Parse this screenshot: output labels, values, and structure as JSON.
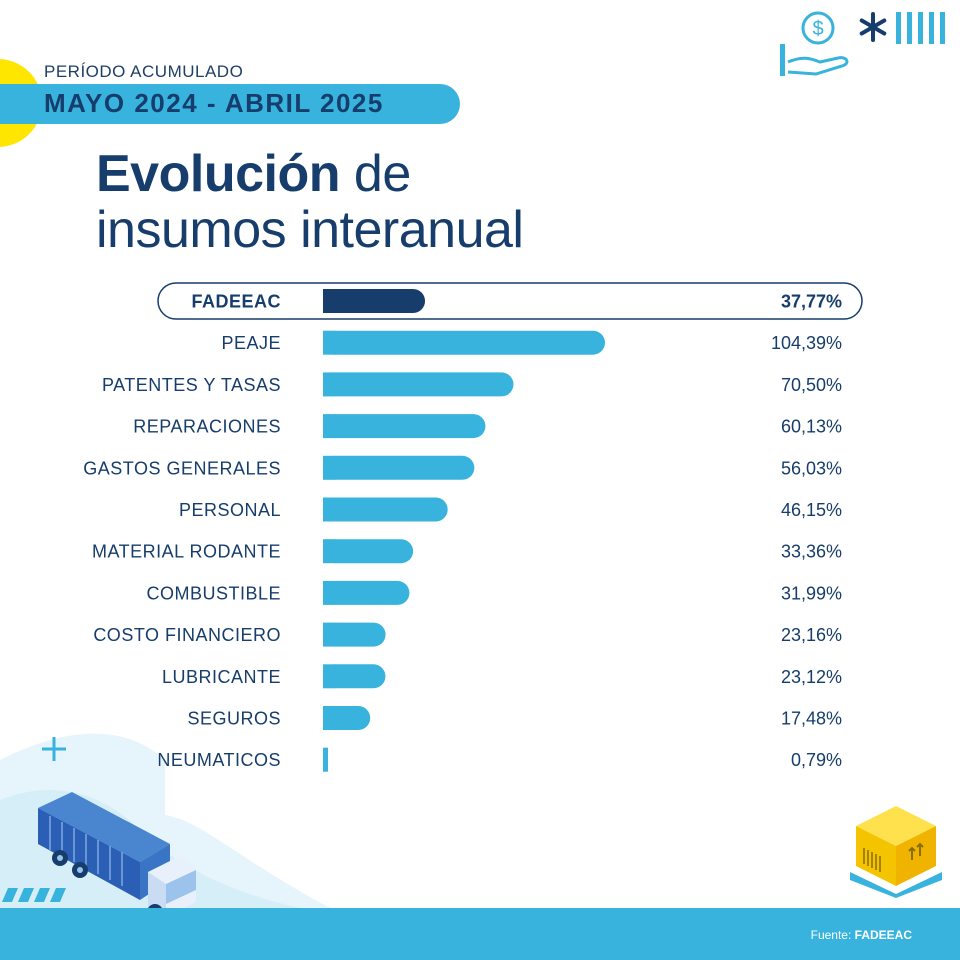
{
  "header": {
    "period_label": "PERÍODO ACUMULADO",
    "period": "MAYO 2024 - ABRIL 2025"
  },
  "title": {
    "bold": "Evolución",
    "rest": " de",
    "line2": "insumos interanual"
  },
  "colors": {
    "highlight_bar": "#163d6b",
    "bar": "#38b3de",
    "text": "#163d6b",
    "accent_yellow": "#ffe600"
  },
  "icons": [
    "money-hand-icon",
    "asterisk-icon",
    "stripes-icon",
    "plus-icon",
    "truck-icon",
    "box-on-pallet-icon"
  ],
  "chart_data": {
    "type": "bar",
    "orientation": "horizontal",
    "categories": [
      "FADEEAC",
      "PEAJE",
      "PATENTES Y TASAS",
      "REPARACIONES",
      "GASTOS GENERALES",
      "PERSONAL",
      "MATERIAL RODANTE",
      "COMBUSTIBLE",
      "COSTO FINANCIERO",
      "LUBRICANTE",
      "SEGUROS",
      "NEUMATICOS"
    ],
    "values": [
      37.77,
      104.39,
      70.5,
      60.13,
      56.03,
      46.15,
      33.36,
      31.99,
      23.16,
      23.12,
      17.48,
      0.79
    ],
    "value_labels": [
      "37,77%",
      "104,39%",
      "70,50%",
      "60,13%",
      "56,03%",
      "46,15%",
      "33,36%",
      "31,99%",
      "23,16%",
      "23,12%",
      "17,48%",
      "0,79%"
    ],
    "highlight": "FADEEAC",
    "unit": "%",
    "xlim": [
      0,
      104.39
    ],
    "title": "Evolución de insumos interanual",
    "xlabel": "",
    "ylabel": "",
    "grid": false,
    "legend": false
  },
  "footer": {
    "source_label": "Fuente: ",
    "source_name": "FADEEAC"
  }
}
